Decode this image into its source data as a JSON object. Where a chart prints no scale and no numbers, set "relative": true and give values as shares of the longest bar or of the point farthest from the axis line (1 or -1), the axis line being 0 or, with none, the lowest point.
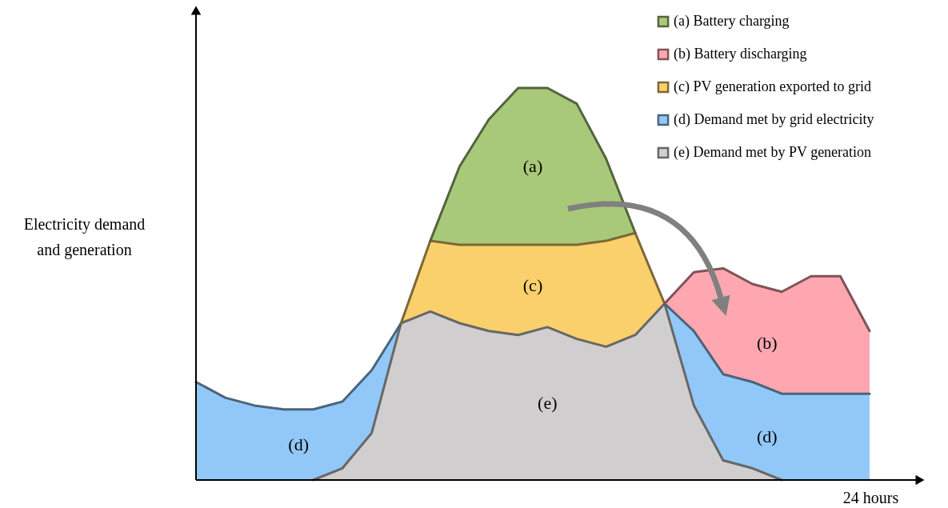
{
  "chart_data": {
    "type": "area",
    "stacked": true,
    "relative": true,
    "xlabel": "24 hours",
    "ylabel": "Electricity demand and generation",
    "categories": [
      null,
      null,
      null,
      null,
      null,
      null,
      null,
      null,
      null,
      null,
      null,
      null,
      null,
      null,
      null,
      null,
      null,
      null,
      null,
      null,
      null,
      null,
      null,
      null
    ],
    "series": [
      {
        "name": "(e) Demand met by PV generation",
        "color": "#d0cece",
        "values": [
          null,
          null,
          null,
          null,
          0,
          0.03,
          0.12,
          0.4,
          0.43,
          0.4,
          0.38,
          0.37,
          0.39,
          0.36,
          0.34,
          0.37,
          0.45,
          0.19,
          0.05,
          0.03,
          0,
          null,
          null,
          null
        ]
      },
      {
        "name": "(d) Demand met by grid electricity",
        "color": "#92c8f8",
        "values": [
          0.25,
          0.21,
          0.19,
          0.18,
          0.18,
          0.17,
          0.16,
          0,
          null,
          null,
          null,
          null,
          null,
          null,
          null,
          null,
          0,
          0.19,
          0.22,
          0.22,
          0.22,
          0.22,
          0.22,
          0.22
        ]
      },
      {
        "name": "(c) PV generation exported to grid",
        "color": "#fad06c",
        "values": [
          null,
          null,
          null,
          null,
          null,
          null,
          null,
          0,
          0.18,
          0.2,
          0.22,
          0.23,
          0.21,
          0.24,
          0.27,
          0.26,
          0,
          null,
          null,
          null,
          null,
          null,
          null,
          null
        ]
      },
      {
        "name": "(a) Battery charging",
        "color": "#a9c97a",
        "values": [
          null,
          null,
          null,
          null,
          null,
          null,
          null,
          null,
          0,
          0.2,
          0.32,
          0.4,
          0.4,
          0.36,
          0.21,
          0,
          null,
          null,
          null,
          null,
          null,
          null,
          null,
          null
        ]
      },
      {
        "name": "(b) Battery discharging",
        "color": "#ffa7b0",
        "values": [
          null,
          null,
          null,
          null,
          null,
          null,
          null,
          null,
          null,
          null,
          null,
          null,
          null,
          null,
          null,
          null,
          0,
          0.15,
          0.27,
          0.25,
          0.26,
          0.3,
          0.3,
          0.16
        ]
      }
    ],
    "annotations": [
      "(e)",
      "(d)",
      "(d)",
      "(c)",
      "(a)",
      "(b)"
    ],
    "legend": "top right",
    "grid": false
  }
}
